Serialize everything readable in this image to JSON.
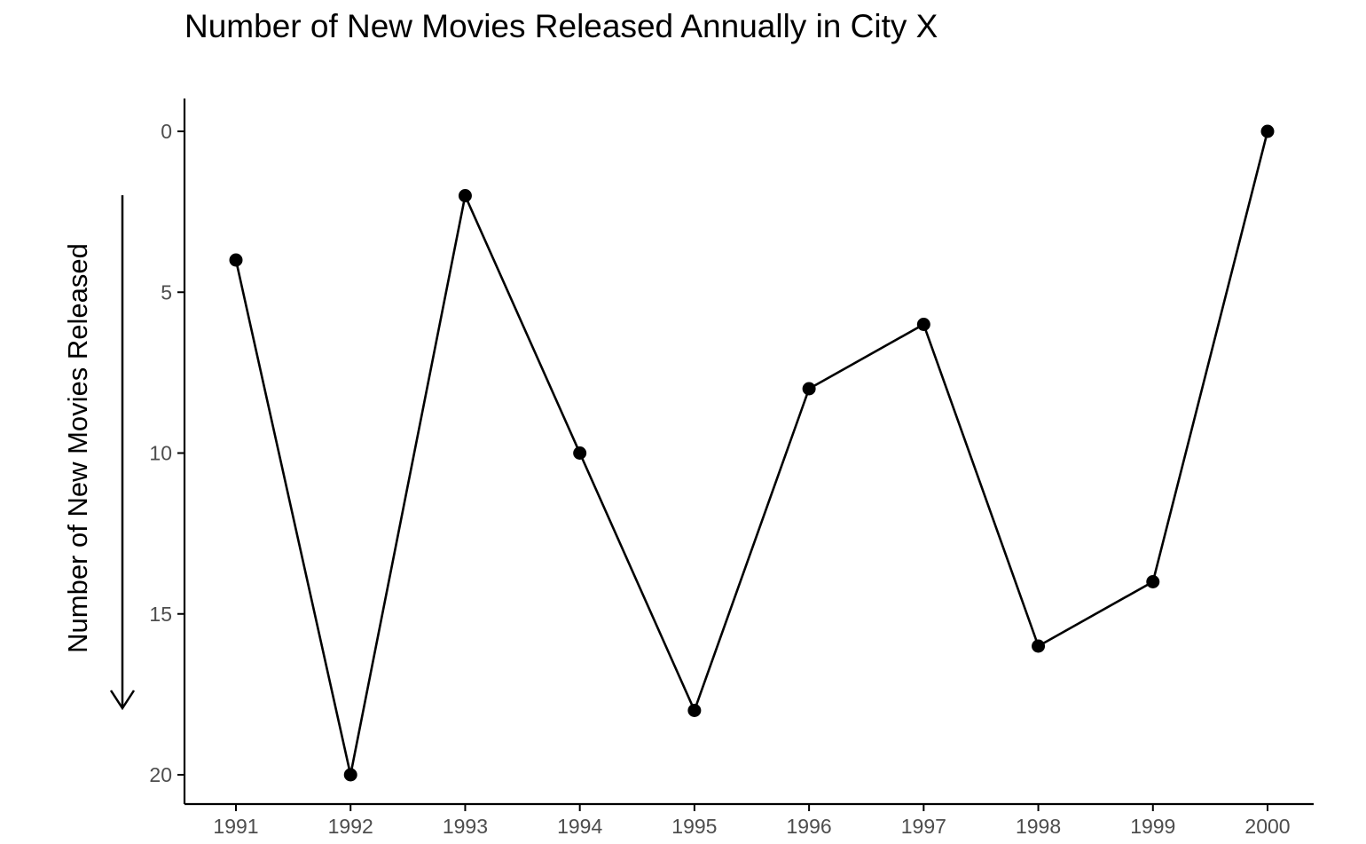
{
  "chart_data": {
    "type": "line",
    "title": "Number of New Movies Released Annually in City X",
    "xlabel": "",
    "ylabel": "Number of New Movies Released",
    "x": [
      "1991",
      "1992",
      "1993",
      "1994",
      "1995",
      "1996",
      "1997",
      "1998",
      "1999",
      "2000"
    ],
    "y": [
      4,
      20,
      2,
      10,
      18,
      8,
      6,
      16,
      14,
      0
    ],
    "x_ticks": [
      "1991",
      "1992",
      "1993",
      "1994",
      "1995",
      "1996",
      "1997",
      "1998",
      "1999",
      "2000"
    ],
    "y_ticks": [
      "0",
      "5",
      "10",
      "15",
      "20"
    ],
    "ylim": [
      0,
      20
    ],
    "y_axis_reversed": true,
    "ylabel_arrow": "down",
    "grid": false,
    "legend": "none",
    "colors": {
      "line": "#000000",
      "point": "#000000",
      "axis": "#000000",
      "tick_label": "#4d4d4d",
      "background": "#ffffff"
    }
  }
}
